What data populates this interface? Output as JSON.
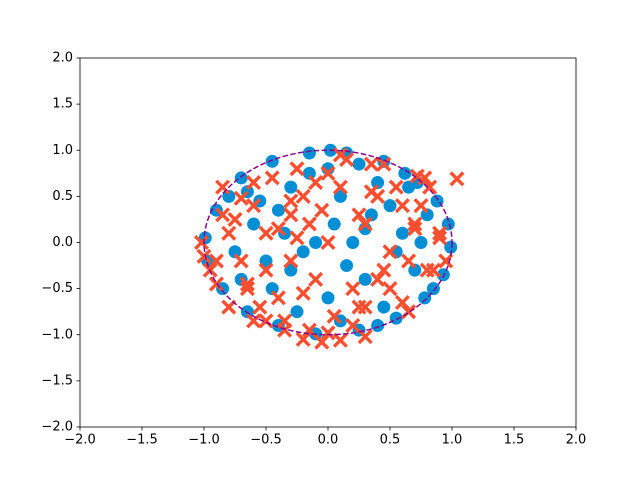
{
  "chart_data": {
    "type": "scatter",
    "xlim": [
      -2,
      2
    ],
    "ylim": [
      -2,
      2
    ],
    "xticks": [
      {
        "value": -2,
        "label": "−2.0"
      },
      {
        "value": -1.5,
        "label": "−1.5"
      },
      {
        "value": -1,
        "label": "−1.0"
      },
      {
        "value": -0.5,
        "label": "−0.5"
      },
      {
        "value": 0,
        "label": "0.0"
      },
      0.5,
      {
        "value": 1,
        "label": "1.0"
      },
      1.5,
      {
        "value": 2,
        "label": "2.0"
      }
    ],
    "yticks": [
      {
        "value": -2,
        "label": "−2.0"
      },
      {
        "value": -1.5,
        "label": "−1.5"
      },
      {
        "value": -1,
        "label": "−1.0"
      },
      {
        "value": -0.5,
        "label": "−0.5"
      },
      {
        "value": 0,
        "label": "0.0"
      },
      0.5,
      {
        "value": 1,
        "label": "1.0"
      },
      1.5,
      {
        "value": 2,
        "label": "2.0"
      }
    ],
    "reference_circle": {
      "radius": 1,
      "color": "#8b008b"
    },
    "series": [
      {
        "marker": "circle",
        "color": "#008fd5",
        "x": [
          0.02,
          0.45,
          0.72,
          0.88,
          0.97,
          0.99,
          0.93,
          0.78,
          0.55,
          0.25,
          -0.1,
          -0.4,
          -0.65,
          -0.85,
          -0.97,
          -0.99,
          -0.9,
          -0.7,
          -0.45,
          -0.15,
          0.15,
          0.4,
          0.62,
          0.85,
          0.1,
          -0.3,
          0.3,
          -0.6,
          0.6,
          0.0,
          0.5,
          -0.5,
          0.2,
          -0.2,
          0.7,
          -0.7,
          0.35,
          -0.35,
          0.8,
          -0.8,
          0.05,
          0.45,
          -0.45,
          0.65,
          -0.65,
          0.15,
          -0.15,
          0.25,
          -0.25,
          0.55,
          -0.55,
          0.75,
          -0.75,
          0.4,
          -0.4,
          0.1,
          -0.1,
          0.3,
          -0.3,
          0.0
        ],
        "values": [
          1.0,
          0.88,
          0.65,
          0.45,
          0.2,
          -0.05,
          -0.35,
          -0.6,
          -0.82,
          -0.95,
          -0.99,
          -0.9,
          -0.75,
          -0.5,
          -0.2,
          0.05,
          0.35,
          0.7,
          0.88,
          0.97,
          0.97,
          -0.9,
          0.75,
          -0.5,
          0.5,
          0.6,
          -0.4,
          0.2,
          0.1,
          -0.6,
          0.4,
          -0.2,
          0.0,
          -0.1,
          -0.3,
          -0.4,
          0.3,
          0.1,
          0.3,
          0.5,
          0.2,
          -0.7,
          -0.5,
          0.6,
          0.55,
          -0.25,
          0.75,
          0.85,
          -0.75,
          -0.1,
          0.45,
          0.0,
          -0.1,
          0.65,
          0.35,
          -0.85,
          0.0,
          0.15,
          -0.3,
          0.8
        ]
      },
      {
        "marker": "x",
        "color": "#fc4f30",
        "x": [
          0.3,
          -0.3,
          0.5,
          -0.5,
          0.1,
          -0.1,
          0.7,
          -0.7,
          0.2,
          -0.2,
          0.4,
          -0.4,
          0.6,
          -0.6,
          0.0,
          0.8,
          -0.8,
          0.3,
          -0.3,
          0.15,
          -0.15,
          0.45,
          -0.45,
          0.65,
          -0.65,
          0.25,
          -0.25,
          0.55,
          -0.55,
          0.05,
          -0.05,
          0.35,
          -0.35,
          0.75,
          -0.75,
          0.9,
          -0.9,
          0.85,
          -0.85,
          0.5,
          -0.5,
          0.2,
          -0.2,
          0.0,
          0.1,
          -0.1,
          0.6,
          -0.6,
          0.4,
          -0.4,
          -1.02,
          -1.0,
          -0.95,
          -0.9,
          -0.8,
          -0.6,
          -0.35,
          -0.2,
          -0.05,
          0.1,
          0.3,
          0.0,
          0.78,
          0.82,
          0.72,
          0.95,
          0.9,
          -0.85,
          -0.7,
          0.45,
          1.04,
          -0.5,
          0.25,
          -0.25,
          0.65,
          -0.65,
          0.7,
          -0.3,
          0.35,
          -0.15
        ],
        "values": [
          0.2,
          0.3,
          -0.1,
          0.1,
          0.6,
          -0.4,
          0.2,
          -0.2,
          -0.5,
          0.5,
          0.5,
          -0.6,
          0.4,
          0.4,
          0.0,
          -0.3,
          0.1,
          -0.7,
          -0.2,
          0.9,
          0.2,
          -0.3,
          0.7,
          -0.2,
          -0.5,
          0.3,
          0.8,
          0.6,
          -0.7,
          -0.8,
          0.35,
          0.85,
          -0.85,
          0.4,
          0.25,
          0.1,
          -0.2,
          -0.3,
          0.3,
          -0.5,
          -0.3,
          -0.9,
          -0.55,
          0.75,
          0.95,
          0.65,
          -0.65,
          0.65,
          -0.4,
          0.15,
          0.0,
          -0.15,
          -0.3,
          -0.45,
          -0.7,
          -0.85,
          -0.95,
          -1.05,
          -1.08,
          -1.06,
          -1.02,
          -0.98,
          0.7,
          0.6,
          0.72,
          -0.2,
          0.05,
          0.6,
          0.48,
          0.85,
          0.69,
          -0.85,
          -0.7,
          0.05,
          -0.75,
          -0.45,
          0.15,
          0.45,
          0.55,
          -0.95
        ]
      }
    ]
  }
}
